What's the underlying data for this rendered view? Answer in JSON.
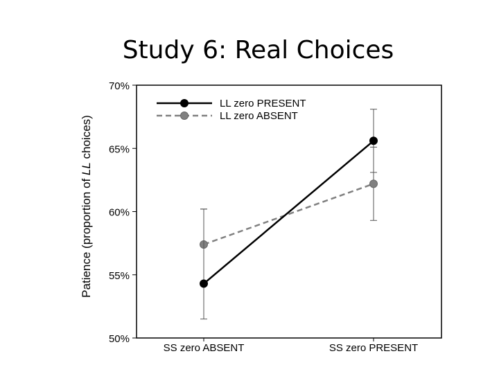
{
  "slide": {
    "title": "Study 6: Real Choices"
  },
  "chart_data": {
    "type": "line",
    "title": "",
    "xlabel": "",
    "ylabel_parts": [
      "Patience (proportion of ",
      "LL",
      " choices)"
    ],
    "categories": [
      "SS zero ABSENT",
      "SS zero PRESENT"
    ],
    "ylim": [
      0.5,
      0.7
    ],
    "yticks": [
      0.5,
      0.55,
      0.6,
      0.65,
      0.7
    ],
    "ytick_labels": [
      "50%",
      "55%",
      "60%",
      "65%",
      "70%"
    ],
    "grid": false,
    "legend_position": "top-left",
    "series": [
      {
        "name": "LL zero PRESENT",
        "color": "#000000",
        "dash": "solid",
        "values": [
          0.543,
          0.656
        ],
        "error_low": [
          0.515,
          0.631
        ],
        "error_high": [
          0.602,
          0.681
        ]
      },
      {
        "name": "LL zero ABSENT",
        "color": "#808080",
        "dash": "dashed",
        "values": [
          0.574,
          0.622
        ],
        "error_low": [
          0.543,
          0.593
        ],
        "error_high": [
          0.602,
          0.651
        ]
      }
    ]
  }
}
